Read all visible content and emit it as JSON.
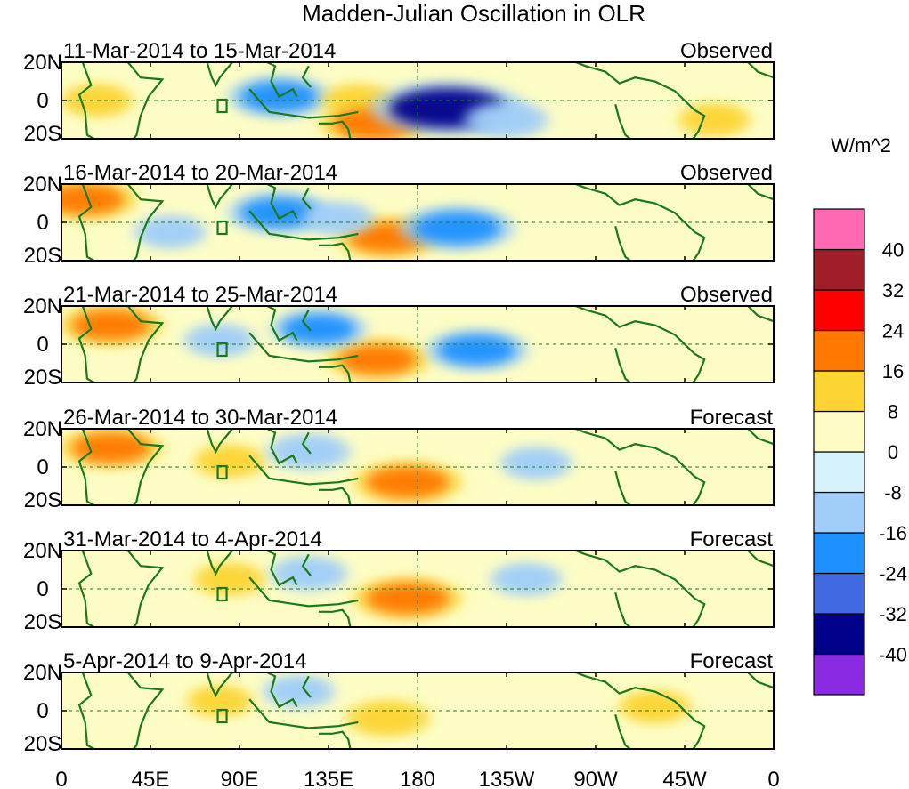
{
  "chart_data": {
    "type": "heatmap",
    "title": "Madden-Julian Oscillation in OLR",
    "units_label": "W/m^2",
    "variable": "OLR anomaly",
    "x_axis": {
      "range_deg_east": [
        0,
        360
      ],
      "ticks": [
        {
          "lon": 0,
          "label": "0"
        },
        {
          "lon": 45,
          "label": "45E"
        },
        {
          "lon": 90,
          "label": "90E"
        },
        {
          "lon": 135,
          "label": "135E"
        },
        {
          "lon": 180,
          "label": "180"
        },
        {
          "lon": 225,
          "label": "135W"
        },
        {
          "lon": 270,
          "label": "90W"
        },
        {
          "lon": 315,
          "label": "45W"
        },
        {
          "lon": 360,
          "label": "0"
        }
      ]
    },
    "y_axis": {
      "range_deg": [
        -20,
        20
      ],
      "ticks": [
        {
          "lat": 20,
          "label": "20N"
        },
        {
          "lat": 0,
          "label": "0"
        },
        {
          "lat": -20,
          "label": "20S"
        }
      ]
    },
    "colorbar": {
      "bins": [
        {
          "color": "#8a2be2"
        },
        {
          "color": "#00008b"
        },
        {
          "color": "#4169e1"
        },
        {
          "color": "#1e90ff"
        },
        {
          "color": "#a0cef8"
        },
        {
          "color": "#d6f3fb"
        },
        {
          "color": "#fdfdc5"
        },
        {
          "color": "#fcd535"
        },
        {
          "color": "#ff7800"
        },
        {
          "color": "#ff0000"
        },
        {
          "color": "#a01e28"
        },
        {
          "color": "#ff69b4"
        }
      ],
      "boundary_labels": [
        "-40",
        "-32",
        "-24",
        "-16",
        "-8",
        "0",
        "8",
        "16",
        "24",
        "32",
        "40"
      ],
      "boundary_values": [
        -40,
        -32,
        -24,
        -16,
        -8,
        0,
        8,
        16,
        24,
        32,
        40
      ]
    },
    "panels": [
      {
        "date_range": "11-Mar-2014 to 15-Mar-2014",
        "status": "Observed",
        "anomalies": [
          {
            "lon": 110,
            "lat": 2,
            "value": -20
          },
          {
            "lon": 150,
            "lat": 0,
            "value": 10
          },
          {
            "lon": 158,
            "lat": -12,
            "value": 22
          },
          {
            "lon": 195,
            "lat": -4,
            "value": -36
          },
          {
            "lon": 225,
            "lat": -10,
            "value": -14
          },
          {
            "lon": 18,
            "lat": 0,
            "value": 10
          },
          {
            "lon": 330,
            "lat": -10,
            "value": 10
          }
        ]
      },
      {
        "date_range": "16-Mar-2014 to 20-Mar-2014",
        "status": "Observed",
        "anomalies": [
          {
            "lon": 12,
            "lat": 12,
            "value": 20
          },
          {
            "lon": 110,
            "lat": 5,
            "value": -20
          },
          {
            "lon": 165,
            "lat": -8,
            "value": 20
          },
          {
            "lon": 200,
            "lat": -3,
            "value": -24
          },
          {
            "lon": 140,
            "lat": 2,
            "value": -10
          },
          {
            "lon": 55,
            "lat": -5,
            "value": -10
          }
        ]
      },
      {
        "date_range": "21-Mar-2014 to 25-Mar-2014",
        "status": "Observed",
        "anomalies": [
          {
            "lon": 25,
            "lat": 10,
            "value": 20
          },
          {
            "lon": 160,
            "lat": -8,
            "value": 20
          },
          {
            "lon": 210,
            "lat": -3,
            "value": -20
          },
          {
            "lon": 130,
            "lat": 8,
            "value": -18
          },
          {
            "lon": 80,
            "lat": 2,
            "value": -10
          }
        ]
      },
      {
        "date_range": "26-Mar-2014 to 30-Mar-2014",
        "status": "Forecast",
        "anomalies": [
          {
            "lon": 25,
            "lat": 10,
            "value": 20
          },
          {
            "lon": 175,
            "lat": -8,
            "value": 22
          },
          {
            "lon": 85,
            "lat": 3,
            "value": 10
          },
          {
            "lon": 125,
            "lat": 8,
            "value": -14
          },
          {
            "lon": 240,
            "lat": 2,
            "value": -10
          }
        ]
      },
      {
        "date_range": "31-Mar-2014 to 4-Apr-2014",
        "status": "Forecast",
        "anomalies": [
          {
            "lon": 175,
            "lat": -5,
            "value": 22
          },
          {
            "lon": 85,
            "lat": 5,
            "value": 10
          },
          {
            "lon": 125,
            "lat": 8,
            "value": -12
          },
          {
            "lon": 235,
            "lat": 5,
            "value": -10
          }
        ]
      },
      {
        "date_range": "5-Apr-2014 to 9-Apr-2014",
        "status": "Forecast",
        "anomalies": [
          {
            "lon": 165,
            "lat": -4,
            "value": 14
          },
          {
            "lon": 120,
            "lat": 10,
            "value": -10
          },
          {
            "lon": 80,
            "lat": 5,
            "value": 8
          },
          {
            "lon": 300,
            "lat": 2,
            "value": 10
          }
        ]
      }
    ]
  }
}
